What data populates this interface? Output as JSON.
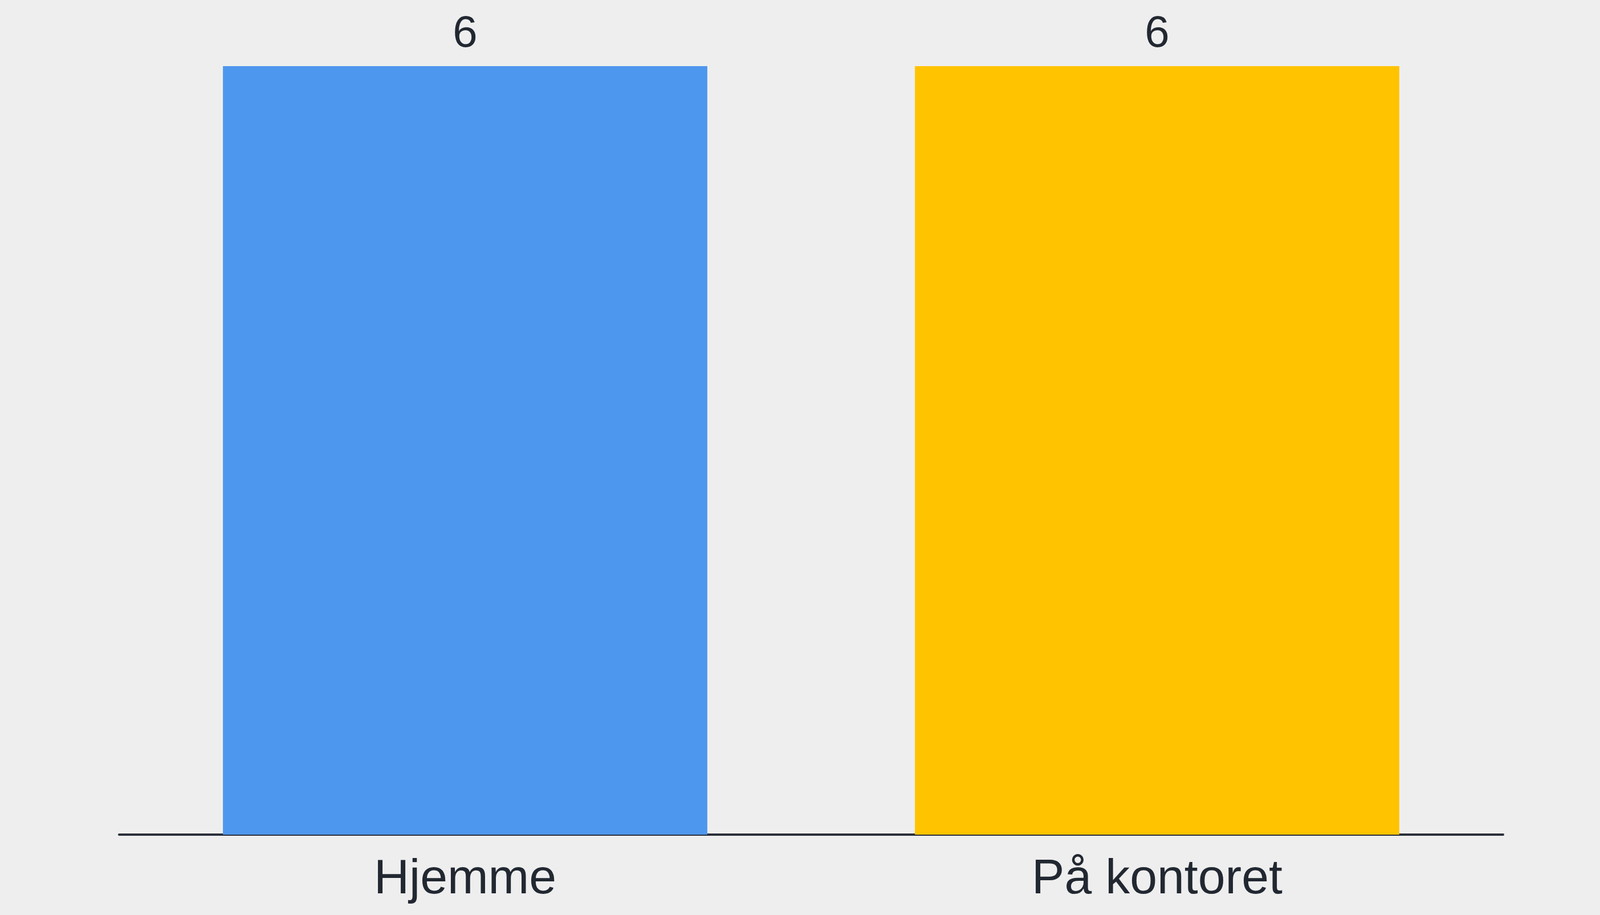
{
  "chart_data": {
    "type": "bar",
    "categories": [
      "Hjemme",
      "På kontoret"
    ],
    "values": [
      6,
      6
    ],
    "colors": [
      "#4e97ee",
      "#ffc300"
    ],
    "ylim": [
      0,
      6
    ],
    "data_labels": true,
    "tick_labels": "x",
    "grid": false
  }
}
